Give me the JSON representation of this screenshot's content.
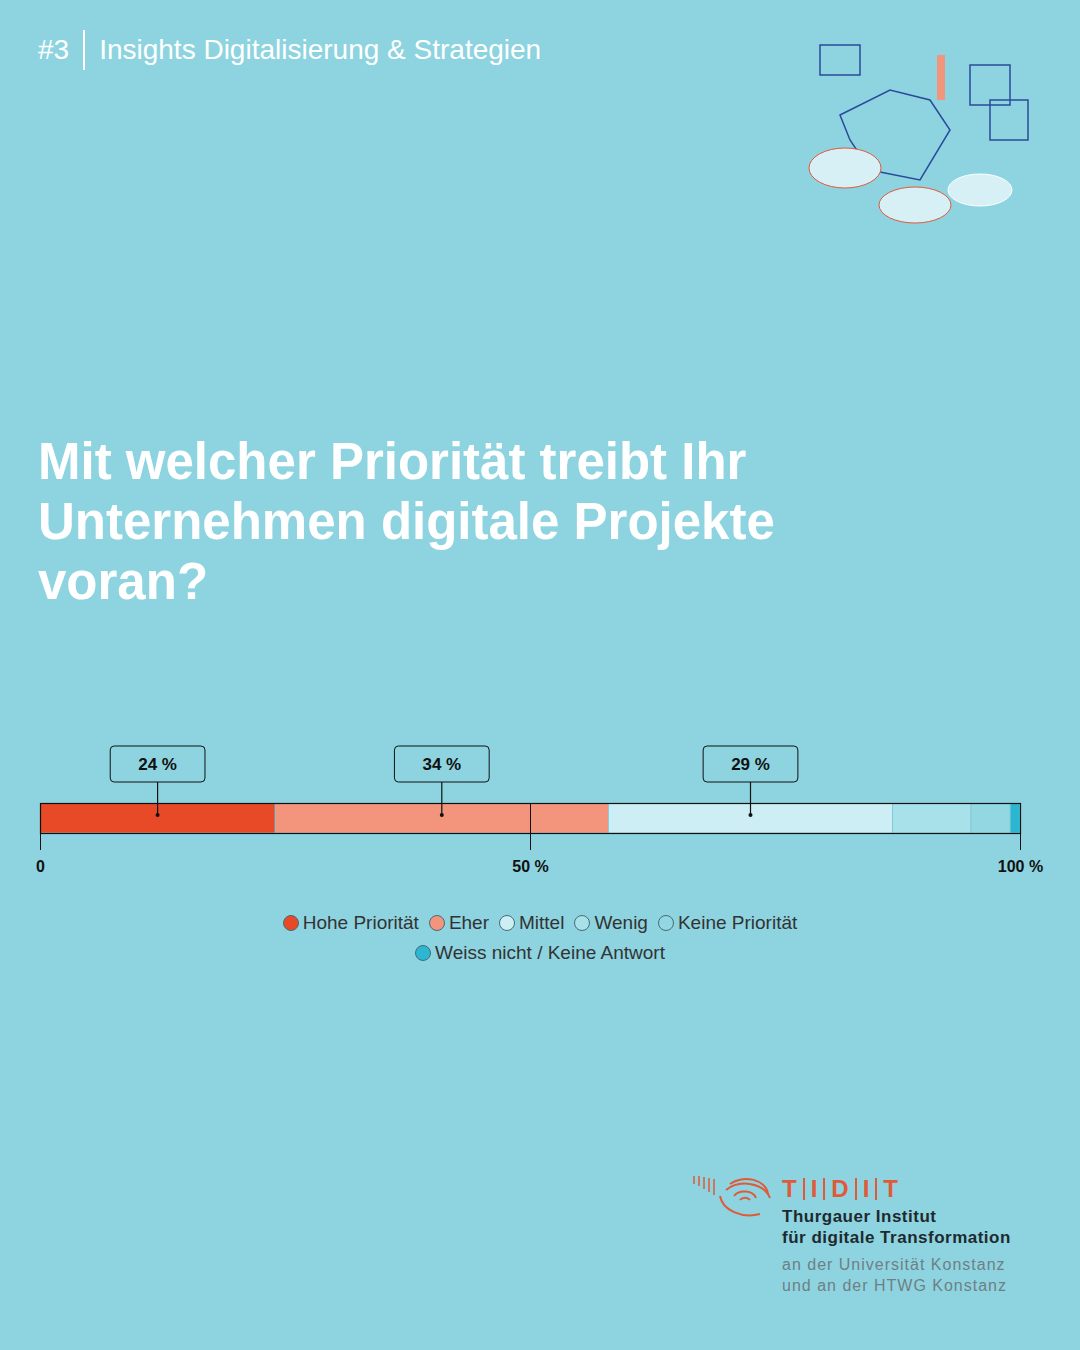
{
  "header": {
    "number": "#3",
    "text": "Insights Digitalisierung & Strategien"
  },
  "chart_data": {
    "type": "bar",
    "title": "Mit welcher Priorität treibt Ihr Unternehmen digitale Projekte voran?",
    "orientation": "horizontal",
    "stacked": true,
    "categories": [
      null
    ],
    "series": [
      {
        "name": "Hohe Priorität",
        "color": "#e84a27",
        "values": [
          24
        ],
        "value_labels": [
          "24 %"
        ]
      },
      {
        "name": "Eher",
        "color": "#f3957d",
        "values": [
          34
        ],
        "value_labels": [
          "34 %"
        ]
      },
      {
        "name": "Mittel",
        "color": "#cdeef4",
        "values": [
          29
        ],
        "value_labels": [
          "29 %"
        ]
      },
      {
        "name": "Wenig",
        "color": "#a8e1ea",
        "values": [
          8
        ]
      },
      {
        "name": "Keine Priorität",
        "color": "#93d7e2",
        "values": [
          4
        ]
      },
      {
        "name": "Weiss nicht / Keine Antwort",
        "color": "#2bb6d2",
        "values": [
          1
        ]
      }
    ],
    "xlim": [
      0,
      100
    ],
    "xticks": [
      0,
      {
        "value": 50,
        "label": "50 %"
      },
      {
        "value": 100,
        "label": "100 %"
      }
    ],
    "data_labels": true,
    "tick_labels": "x",
    "legend": "bottom"
  },
  "footer": {
    "logo": "TIDIT",
    "lines": [
      "Thurgauer Institut",
      "für digitale Transformation"
    ],
    "sublines": [
      "an der Universität Konstanz",
      "und an der HTWG Konstanz"
    ]
  }
}
